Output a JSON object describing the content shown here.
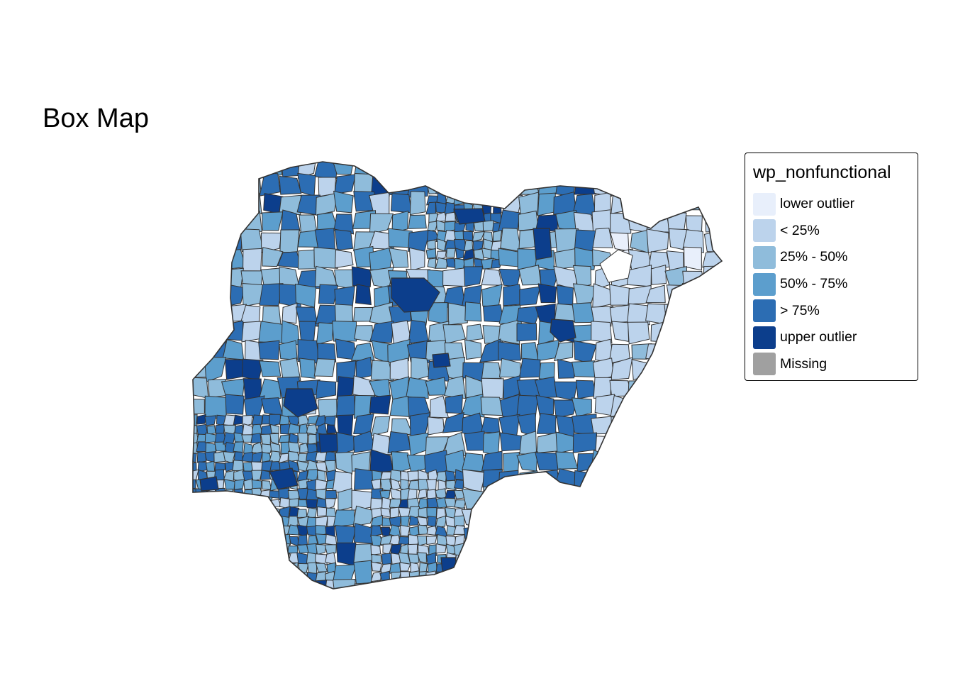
{
  "map": {
    "title": "Box Map",
    "legend": {
      "title": "wp_nonfunctional",
      "items": [
        {
          "label": "lower outlier",
          "color": "#e8effb"
        },
        {
          "label": "< 25%",
          "color": "#bcd3ec"
        },
        {
          "label": "25% - 50%",
          "color": "#8fbcdb"
        },
        {
          "label": "50% - 75%",
          "color": "#5c9ecd"
        },
        {
          "label": "> 75%",
          "color": "#2c6db3"
        },
        {
          "label": "upper outlier",
          "color": "#0c3e8c"
        },
        {
          "label": "Missing",
          "color": "#a0a0a0"
        }
      ]
    },
    "border_color": "#333333"
  }
}
